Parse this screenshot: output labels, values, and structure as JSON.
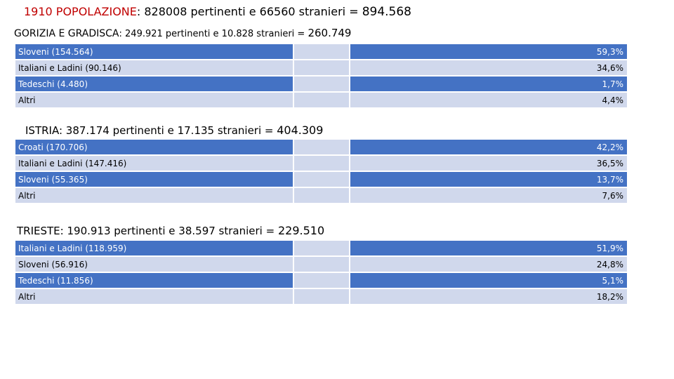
{
  "title": {
    "label": "1910 POPOLAZIONE",
    "text": ": 828008 pertinenti e 66560 stranieri = ",
    "total": "894.568"
  },
  "sections": [
    {
      "name": "GORIZIA E GRADISCA",
      "text": ": 249.921 pertinenti e 10.828 stranieri = ",
      "total": "260.749",
      "rows": [
        {
          "group": "Sloveni (154.564)",
          "pct": "59,3%"
        },
        {
          "group": "Italiani e Ladini (90.146)",
          "pct": "34,6%"
        },
        {
          "group": "Tedeschi (4.480)",
          "pct": "1,7%"
        },
        {
          "group": "Altri",
          "pct": "4,4%"
        }
      ]
    },
    {
      "name": "ISTRIA",
      "text": ": 387.174 pertinenti e 17.135 stranieri = ",
      "total": "404.309",
      "rows": [
        {
          "group": "Croati (170.706)",
          "pct": "42,2%"
        },
        {
          "group": "Italiani e Ladini (147.416)",
          "pct": "36,5%"
        },
        {
          "group": "Sloveni (55.365)",
          "pct": "13,7%"
        },
        {
          "group": "Altri",
          "pct": "7,6%"
        }
      ]
    },
    {
      "name": "TRIESTE",
      "text": ": 190.913 pertinenti e 38.597 stranieri = ",
      "total": "229.510",
      "rows": [
        {
          "group": "Italiani e Ladini (118.959)",
          "pct": "51,9%"
        },
        {
          "group": "Sloveni (56.916)",
          "pct": "24,8%"
        },
        {
          "group": "Tedeschi (11.856)",
          "pct": "5,1%"
        },
        {
          "group": "Altri",
          "pct": "18,2%"
        }
      ]
    }
  ]
}
